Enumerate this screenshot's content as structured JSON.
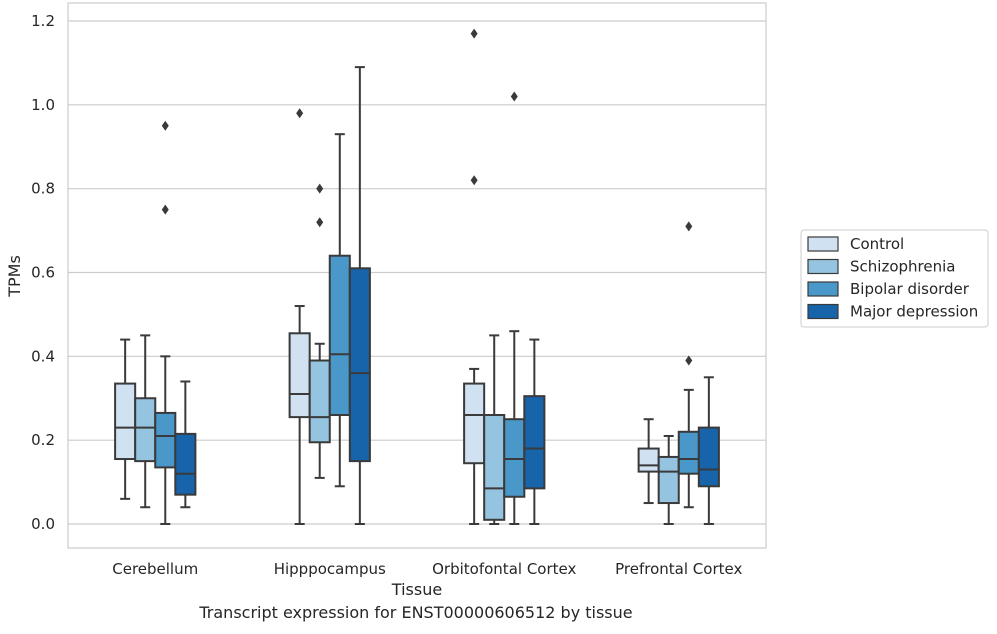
{
  "chart_data": {
    "type": "boxplot",
    "xlabel": "Tissue",
    "ylabel": "TPMs",
    "caption": "Transcript expression for ENST00000606512 by tissue",
    "ylim": [
      -0.055,
      1.235
    ],
    "yticks": [
      0.0,
      0.2,
      0.4,
      0.6,
      0.8,
      1.0,
      1.2
    ],
    "ytick_labels": [
      "0.0",
      "0.2",
      "0.4",
      "0.6",
      "0.8",
      "1.0",
      "1.2"
    ],
    "grid": "horizontal",
    "legend_position": "outside-right",
    "categories": [
      "Cerebellum",
      "Hipppocampus",
      "Orbitofontal Cortex",
      "Prefrontal Cortex"
    ],
    "series": [
      {
        "name": "Control",
        "color": "#d0e1f2",
        "boxes": [
          {
            "q1": 0.155,
            "median": 0.23,
            "q3": 0.335,
            "whislo": 0.06,
            "whishi": 0.44,
            "fliers": []
          },
          {
            "q1": 0.255,
            "median": 0.31,
            "q3": 0.455,
            "whislo": 0.0,
            "whishi": 0.52,
            "fliers": [
              0.98
            ]
          },
          {
            "q1": 0.145,
            "median": 0.26,
            "q3": 0.335,
            "whislo": 0.0,
            "whishi": 0.37,
            "fliers": [
              0.82,
              1.17
            ]
          },
          {
            "q1": 0.125,
            "median": 0.14,
            "q3": 0.18,
            "whislo": 0.05,
            "whishi": 0.25,
            "fliers": []
          }
        ]
      },
      {
        "name": "Schizophrenia",
        "color": "#94c4df",
        "boxes": [
          {
            "q1": 0.15,
            "median": 0.23,
            "q3": 0.3,
            "whislo": 0.04,
            "whishi": 0.45,
            "fliers": []
          },
          {
            "q1": 0.195,
            "median": 0.255,
            "q3": 0.39,
            "whislo": 0.11,
            "whishi": 0.43,
            "fliers": [
              0.72,
              0.8
            ]
          },
          {
            "q1": 0.01,
            "median": 0.085,
            "q3": 0.26,
            "whislo": 0.0,
            "whishi": 0.45,
            "fliers": []
          },
          {
            "q1": 0.05,
            "median": 0.125,
            "q3": 0.16,
            "whislo": 0.0,
            "whishi": 0.21,
            "fliers": []
          }
        ]
      },
      {
        "name": "Bipolar disorder",
        "color": "#4a98c9",
        "boxes": [
          {
            "q1": 0.135,
            "median": 0.21,
            "q3": 0.265,
            "whislo": 0.0,
            "whishi": 0.4,
            "fliers": [
              0.75,
              0.95
            ]
          },
          {
            "q1": 0.26,
            "median": 0.405,
            "q3": 0.64,
            "whislo": 0.09,
            "whishi": 0.93,
            "fliers": []
          },
          {
            "q1": 0.065,
            "median": 0.155,
            "q3": 0.25,
            "whislo": 0.0,
            "whishi": 0.46,
            "fliers": [
              1.02
            ]
          },
          {
            "q1": 0.12,
            "median": 0.155,
            "q3": 0.22,
            "whislo": 0.04,
            "whishi": 0.32,
            "fliers": [
              0.39,
              0.71
            ]
          }
        ]
      },
      {
        "name": "Major depression",
        "color": "#1764ab",
        "boxes": [
          {
            "q1": 0.07,
            "median": 0.12,
            "q3": 0.215,
            "whislo": 0.04,
            "whishi": 0.34,
            "fliers": []
          },
          {
            "q1": 0.15,
            "median": 0.36,
            "q3": 0.61,
            "whislo": 0.0,
            "whishi": 1.09,
            "fliers": []
          },
          {
            "q1": 0.085,
            "median": 0.18,
            "q3": 0.305,
            "whislo": 0.0,
            "whishi": 0.44,
            "fliers": []
          },
          {
            "q1": 0.09,
            "median": 0.13,
            "q3": 0.23,
            "whislo": 0.0,
            "whishi": 0.35,
            "fliers": []
          }
        ]
      }
    ]
  }
}
